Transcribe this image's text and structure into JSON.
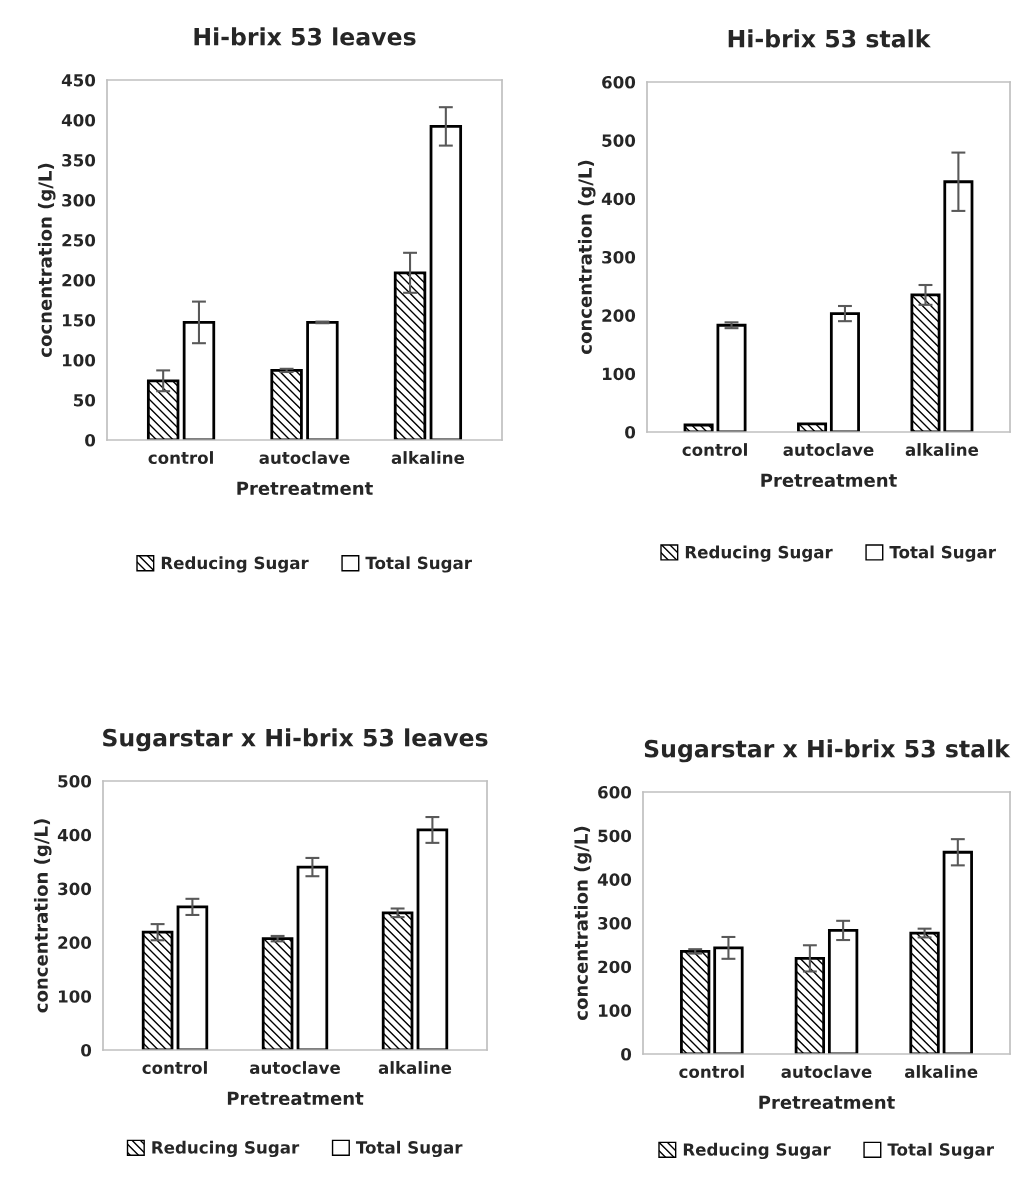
{
  "chart_data": [
    {
      "type": "bar",
      "title": "Hi-brix 53 leaves",
      "xlabel": "Pretreatment",
      "ylabel": "cocnentration (g/L)",
      "categories": [
        "control",
        "autoclave",
        "alkaline"
      ],
      "ylim": [
        0,
        450
      ],
      "yticks": [
        0,
        50,
        100,
        150,
        200,
        250,
        300,
        350,
        400,
        450
      ],
      "legend": "bottom",
      "grid": false,
      "series": [
        {
          "name": "Reducing Sugar",
          "color": "#000000",
          "values": [
            74,
            87,
            209
          ],
          "errors": [
            13,
            2,
            25
          ]
        },
        {
          "name": "Total Sugar",
          "color": "#ffffff",
          "values": [
            147,
            147,
            392
          ],
          "errors": [
            26,
            1,
            24
          ]
        }
      ]
    },
    {
      "type": "bar",
      "title": "Hi-brix 53 stalk",
      "xlabel": "Pretreatment",
      "ylabel": "concentration (g/L)",
      "categories": [
        "control",
        "autoclave",
        "alkaline"
      ],
      "ylim": [
        0,
        600
      ],
      "yticks": [
        0,
        100,
        200,
        300,
        400,
        500,
        600
      ],
      "legend": "bottom",
      "grid": false,
      "series": [
        {
          "name": "Reducing Sugar",
          "color": "#000000",
          "values": [
            12,
            14,
            235
          ],
          "errors": [
            null,
            null,
            17
          ]
        },
        {
          "name": "Total Sugar",
          "color": "#ffffff",
          "values": [
            183,
            203,
            429
          ],
          "errors": [
            5,
            13,
            50
          ]
        }
      ]
    },
    {
      "type": "bar",
      "title": "Sugarstar x Hi-brix 53 leaves",
      "xlabel": "Pretreatment",
      "ylabel": "concentration (g/L)",
      "categories": [
        "control",
        "autoclave",
        "alkaline"
      ],
      "ylim": [
        0,
        500
      ],
      "yticks": [
        0,
        100,
        200,
        300,
        400,
        500
      ],
      "legend": "bottom",
      "grid": false,
      "series": [
        {
          "name": "Reducing Sugar",
          "color": "#000000",
          "values": [
            219,
            207,
            255
          ],
          "errors": [
            15,
            5,
            8
          ]
        },
        {
          "name": "Total Sugar",
          "color": "#ffffff",
          "values": [
            266,
            340,
            409
          ],
          "errors": [
            15,
            17,
            24
          ]
        }
      ]
    },
    {
      "type": "bar",
      "title": "Sugarstar x Hi-brix 53 stalk",
      "xlabel": "Pretreatment",
      "ylabel": "concentration (g/L)",
      "categories": [
        "control",
        "autoclave",
        "alkaline"
      ],
      "ylim": [
        0,
        600
      ],
      "yticks": [
        0,
        100,
        200,
        300,
        400,
        500,
        600
      ],
      "legend": "bottom",
      "grid": false,
      "series": [
        {
          "name": "Reducing Sugar",
          "color": "#000000",
          "values": [
            235,
            219,
            277
          ],
          "errors": [
            5,
            30,
            10
          ]
        },
        {
          "name": "Total Sugar",
          "color": "#ffffff",
          "values": [
            243,
            283,
            462
          ],
          "errors": [
            25,
            22,
            30
          ]
        }
      ]
    }
  ]
}
